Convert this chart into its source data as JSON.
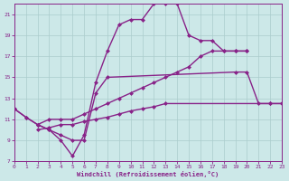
{
  "xlabel": "Windchill (Refroidissement éolien,°C)",
  "xlim": [
    0,
    23
  ],
  "ylim": [
    7,
    22
  ],
  "xticks": [
    0,
    1,
    2,
    3,
    4,
    5,
    6,
    7,
    8,
    9,
    10,
    11,
    12,
    13,
    14,
    15,
    16,
    17,
    18,
    19,
    20,
    21,
    22,
    23
  ],
  "yticks": [
    7,
    9,
    11,
    13,
    15,
    17,
    19,
    21
  ],
  "bg_color": "#cce8e8",
  "grid_color": "#aacccc",
  "line_color": "#882288",
  "c1_x": [
    0,
    1,
    2,
    3,
    4,
    5,
    6,
    7,
    8,
    9,
    10,
    11,
    12,
    13,
    14,
    15,
    16,
    17,
    18,
    19,
    20
  ],
  "c1_y": [
    12.0,
    11.2,
    10.5,
    10.0,
    9.0,
    7.5,
    9.5,
    14.5,
    17.5,
    20.0,
    20.5,
    20.5,
    22.0,
    22.0,
    22.0,
    19.0,
    18.5,
    18.5,
    17.5,
    17.5,
    17.5
  ],
  "c2_x": [
    0,
    1,
    2,
    3,
    4,
    5,
    6,
    7,
    8,
    19,
    20,
    21,
    22,
    23
  ],
  "c2_y": [
    12.0,
    11.2,
    10.5,
    10.0,
    9.5,
    9.0,
    9.0,
    13.5,
    15.0,
    15.5,
    15.5,
    12.5,
    12.5,
    12.5
  ],
  "c3_x": [
    2,
    3,
    4,
    5,
    6,
    7,
    8,
    9,
    10,
    11,
    12,
    13,
    14,
    15,
    16,
    17,
    18,
    19,
    20
  ],
  "c3_y": [
    10.5,
    11.0,
    11.0,
    11.0,
    11.5,
    12.0,
    12.5,
    13.0,
    13.5,
    14.0,
    14.5,
    15.0,
    15.5,
    16.0,
    17.0,
    17.5,
    17.5,
    17.5,
    17.5
  ],
  "c4_x": [
    2,
    3,
    4,
    5,
    6,
    7,
    8,
    9,
    10,
    11,
    12,
    13,
    22,
    23
  ],
  "c4_y": [
    10.0,
    10.2,
    10.5,
    10.5,
    10.8,
    11.0,
    11.2,
    11.5,
    11.8,
    12.0,
    12.2,
    12.5,
    12.5,
    12.5
  ],
  "marker": "D",
  "markersize": 2.5,
  "linewidth": 1.0
}
